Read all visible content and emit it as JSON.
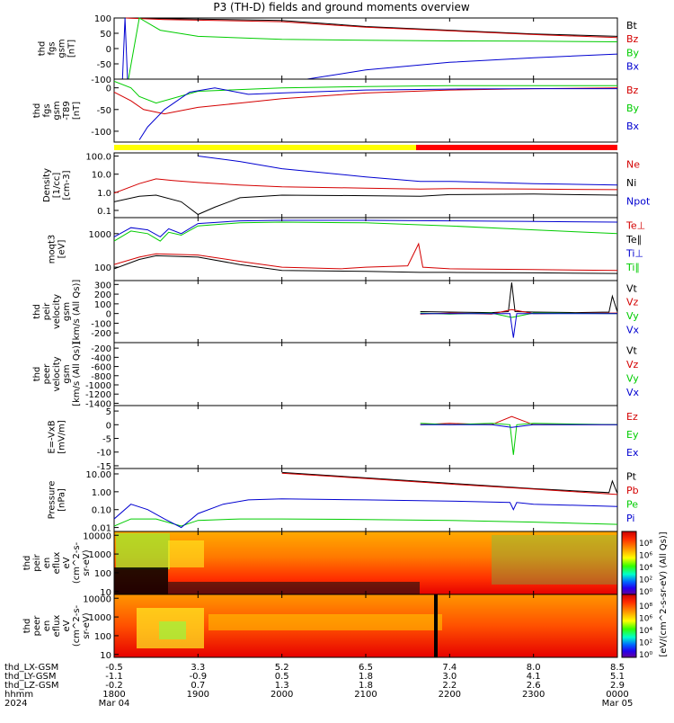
{
  "chart_data": {
    "type": "line",
    "title": "P3 (TH-D) fields and ground moments overview",
    "x_start": "1800",
    "x_end": "0000",
    "date_start": "Mar 04",
    "date_end": "Mar 05",
    "year": "2024",
    "x_ticks": [
      "1800",
      "1900",
      "2000",
      "2100",
      "2200",
      "2300",
      "0000"
    ],
    "ephem_rows": [
      {
        "label": "thd_LX-GSM",
        "values": [
          "-0.5",
          "3.3",
          "5.2",
          "6.5",
          "7.4",
          "8.0",
          "8.5"
        ]
      },
      {
        "label": "thd_LY-GSM",
        "values": [
          "-1.1",
          "-0.9",
          "0.5",
          "1.8",
          "3.0",
          "4.1",
          "5.1"
        ]
      },
      {
        "label": "thd_LZ-GSM",
        "values": [
          "-0.2",
          "0.7",
          "1.3",
          "1.8",
          "2.2",
          "2.6",
          "2.9"
        ]
      },
      {
        "label": "hhmm",
        "values": [
          "1800",
          "1900",
          "2000",
          "2100",
          "2200",
          "2300",
          "0000"
        ]
      }
    ],
    "date_row": {
      "year": "2024",
      "start": "Mar 04",
      "end": "Mar 05"
    },
    "panels": [
      {
        "ylabel": [
          "thd",
          "fgs",
          "gsm",
          "[nT]"
        ],
        "ylim": [
          -100,
          100
        ],
        "scale": "linear",
        "yticks": [
          100,
          50,
          0,
          -50,
          -100
        ],
        "ytick_labels": [
          "100",
          "50",
          "0",
          "-50",
          "-100"
        ],
        "series": [
          {
            "name": "Bt",
            "color": "#000000",
            "x": [
              0.14,
              0.6,
              2.0,
              3.0,
              4.0,
              5.0,
              6.0
            ],
            "y": [
              100,
              98,
              92,
              72,
              60,
              48,
              40
            ]
          },
          {
            "name": "Bz",
            "color": "#d40000",
            "x": [
              0.14,
              0.6,
              2.0,
              3.0,
              4.0,
              5.0,
              6.0
            ],
            "y": [
              100,
              95,
              88,
              70,
              58,
              46,
              36
            ]
          },
          {
            "name": "By",
            "color": "#00cc00",
            "x": [
              0.17,
              0.3,
              0.55,
              1.0,
              2.0,
              3.0,
              4.0,
              5.0,
              6.0
            ],
            "y": [
              -100,
              100,
              60,
              40,
              30,
              27,
              25,
              24,
              22
            ]
          },
          {
            "name": "Bx",
            "color": "#0000d0",
            "x": [
              0.1,
              0.13,
              0.16,
              2.3,
              3.0,
              4.0,
              5.0,
              6.0
            ],
            "y": [
              -100,
              100,
              -100,
              -100,
              -70,
              -45,
              -30,
              -18
            ]
          }
        ]
      },
      {
        "ylabel": [
          "thd",
          "fgs",
          "gsm",
          "-T89",
          "[nT]"
        ],
        "ylim": [
          -125,
          20
        ],
        "scale": "linear",
        "yticks": [
          0,
          -50,
          -100
        ],
        "ytick_labels": [
          "0",
          "-50",
          "-100"
        ],
        "series": [
          {
            "name": "Bz",
            "color": "#d40000",
            "x": [
              0,
              0.2,
              0.35,
              0.6,
              1.0,
              1.5,
              2.0,
              3.0,
              4.0,
              5.0,
              6.0
            ],
            "y": [
              -10,
              -30,
              -50,
              -60,
              -45,
              -35,
              -25,
              -12,
              -5,
              -2,
              0
            ]
          },
          {
            "name": "By",
            "color": "#00cc00",
            "x": [
              0,
              0.2,
              0.3,
              0.5,
              1.0,
              2.0,
              3.0,
              4.0,
              5.0,
              6.0
            ],
            "y": [
              15,
              0,
              -20,
              -35,
              -8,
              0,
              3,
              5,
              5,
              5
            ]
          },
          {
            "name": "Bx",
            "color": "#0000d0",
            "x": [
              0.3,
              0.4,
              0.6,
              0.9,
              1.2,
              1.6,
              2.0,
              3.0,
              4.0,
              5.0,
              6.0
            ],
            "y": [
              -120,
              -90,
              -50,
              -10,
              0,
              -15,
              -12,
              -5,
              -3,
              -2,
              -2
            ]
          }
        ]
      },
      {
        "ylabel": [
          "Density",
          "[1/cc]",
          "[cm-3]"
        ],
        "ylim": [
          0.04,
          150
        ],
        "scale": "log",
        "yticks": [
          100,
          10,
          1,
          0.1
        ],
        "ytick_labels": [
          "100.0",
          "10.0",
          "1.0",
          "0.1"
        ],
        "series": [
          {
            "name": "Ne",
            "color": "#d40000",
            "x": [
              0,
              0.3,
              0.5,
              0.7,
              1.0,
              1.5,
              2.0,
              3.0,
              3.65,
              4.0,
              5.0,
              6.0
            ],
            "y": [
              0.9,
              3.0,
              5.5,
              4.5,
              3.5,
              2.5,
              2.0,
              1.7,
              1.5,
              1.6,
              1.5,
              1.4
            ]
          },
          {
            "name": "Ni",
            "color": "#000000",
            "x": [
              0,
              0.3,
              0.5,
              0.8,
              1.0,
              1.2,
              1.5,
              2.0,
              3.0,
              3.65,
              4.0,
              5.0,
              6.0
            ],
            "y": [
              0.3,
              0.6,
              0.7,
              0.3,
              0.06,
              0.15,
              0.5,
              0.7,
              0.65,
              0.6,
              0.75,
              0.8,
              0.7
            ]
          },
          {
            "name": "Npot",
            "color": "#0000d0",
            "x": [
              1.0,
              1.5,
              2.0,
              2.5,
              3.0,
              3.65,
              4.0,
              5.0,
              6.0
            ],
            "y": [
              100,
              50,
              20,
              12,
              7,
              4,
              4,
              3,
              2.5
            ]
          }
        ]
      },
      {
        "ylabel": [
          "moqt3",
          "[eV]"
        ],
        "ylim": [
          40,
          3000
        ],
        "scale": "log",
        "yticks": [
          1000,
          100
        ],
        "ytick_labels": [
          "1000",
          "100"
        ],
        "series": [
          {
            "name": "Te⊥",
            "color": "#d40000",
            "x": [
              0,
              0.3,
              0.5,
              1.0,
              1.5,
              2.0,
              2.7,
              3.0,
              3.5,
              3.63,
              3.68,
              4.0,
              5.0,
              6.0
            ],
            "y": [
              120,
              200,
              250,
              230,
              150,
              100,
              90,
              100,
              110,
              500,
              100,
              90,
              85,
              80
            ]
          },
          {
            "name": "Te∥",
            "color": "#000000",
            "x": [
              0,
              0.3,
              0.5,
              1.0,
              1.5,
              2.0,
              3.0,
              3.65,
              4.0,
              5.0,
              6.0
            ],
            "y": [
              90,
              170,
              220,
              200,
              120,
              80,
              75,
              70,
              70,
              68,
              65
            ]
          },
          {
            "name": "Ti⊥",
            "color": "#0000d0",
            "x": [
              0,
              0.2,
              0.4,
              0.55,
              0.65,
              0.8,
              1.0,
              1.5,
              2.0,
              3.0,
              4.0,
              5.0,
              6.0
            ],
            "y": [
              800,
              1500,
              1300,
              800,
              1400,
              1000,
              2000,
              2400,
              2500,
              2500,
              2400,
              2300,
              2200
            ]
          },
          {
            "name": "Ti∥",
            "color": "#00cc00",
            "x": [
              0,
              0.2,
              0.4,
              0.55,
              0.65,
              0.8,
              1.0,
              1.5,
              2.0,
              3.0,
              4.0,
              5.0,
              6.0
            ],
            "y": [
              600,
              1200,
              1000,
              600,
              1100,
              900,
              1700,
              2100,
              2200,
              2100,
              1700,
              1300,
              1000
            ]
          }
        ]
      },
      {
        "ylabel": [
          "thd",
          "peir",
          "velocity",
          "gsm",
          "[km/s (All Qs)]"
        ],
        "ylim": [
          -300,
          340
        ],
        "scale": "linear",
        "yticks": [
          300,
          200,
          100,
          0,
          -100,
          -200
        ],
        "ytick_labels": [
          "300",
          "200",
          "100",
          "0",
          "-100",
          "-200"
        ],
        "series": [
          {
            "name": "Vt",
            "color": "#000000",
            "x": [
              3.65,
              4.0,
              4.5,
              4.7,
              4.74,
              4.78,
              5.0,
              5.5,
              5.9,
              5.94,
              6.0
            ],
            "y": [
              20,
              15,
              10,
              20,
              320,
              20,
              15,
              10,
              15,
              180,
              15
            ]
          },
          {
            "name": "Vz",
            "color": "#d40000",
            "x": [
              3.65,
              4.0,
              4.5,
              4.74,
              5.0,
              6.0
            ],
            "y": [
              -5,
              5,
              -5,
              40,
              0,
              5
            ]
          },
          {
            "name": "Vy",
            "color": "#00cc00",
            "x": [
              3.65,
              4.0,
              4.5,
              4.74,
              5.0,
              6.0
            ],
            "y": [
              5,
              -5,
              5,
              -40,
              5,
              0
            ]
          },
          {
            "name": "Vx",
            "color": "#0000d0",
            "x": [
              3.65,
              4.0,
              4.5,
              4.72,
              4.76,
              4.8,
              5.0,
              6.0
            ],
            "y": [
              0,
              0,
              0,
              0,
              -250,
              0,
              0,
              0
            ]
          }
        ]
      },
      {
        "ylabel": [
          "thd",
          "peer",
          "velocity",
          "gsm",
          "[km/s (All Qs)]"
        ],
        "ylim": [
          -1450,
          -80
        ],
        "scale": "linear",
        "yticks": [
          -200,
          -400,
          -600,
          -800,
          -1000,
          -1200,
          -1400
        ],
        "ytick_labels": [
          "-200",
          "-400",
          "-600",
          "-800",
          "-1000",
          "-1200",
          "-1400"
        ],
        "series": [
          {
            "name": "Vt",
            "color": "#000000",
            "x": [],
            "y": []
          },
          {
            "name": "Vz",
            "color": "#d40000",
            "x": [],
            "y": []
          },
          {
            "name": "Vy",
            "color": "#00cc00",
            "x": [],
            "y": []
          },
          {
            "name": "Vx",
            "color": "#0000d0",
            "x": [],
            "y": []
          }
        ]
      },
      {
        "ylabel": [
          "E=-VxB",
          "[mV/m]"
        ],
        "ylim": [
          -16,
          7
        ],
        "scale": "linear",
        "yticks": [
          5,
          0,
          -5,
          -10,
          -15
        ],
        "ytick_labels": [
          "5",
          "0",
          "-5",
          "-10",
          "-15"
        ],
        "series": [
          {
            "name": "Ez",
            "color": "#d40000",
            "x": [
              3.65,
              4.0,
              4.5,
              4.74,
              5.0,
              6.0
            ],
            "y": [
              0,
              0.5,
              0,
              3,
              0,
              0
            ]
          },
          {
            "name": "Ey",
            "color": "#00cc00",
            "x": [
              3.65,
              4.0,
              4.5,
              4.72,
              4.76,
              4.8,
              5.0,
              6.0
            ],
            "y": [
              0.5,
              0,
              0.5,
              0,
              -11,
              0,
              0.5,
              0
            ]
          },
          {
            "name": "Ex",
            "color": "#0000d0",
            "x": [
              3.65,
              4.0,
              4.5,
              4.74,
              5.0,
              6.0
            ],
            "y": [
              0,
              0,
              0,
              -1,
              0,
              0
            ]
          }
        ]
      },
      {
        "ylabel": [
          "Pressure",
          "[nPa]"
        ],
        "ylim": [
          0.006,
          20
        ],
        "scale": "log",
        "yticks": [
          10,
          1,
          0.1,
          0.01
        ],
        "ytick_labels": [
          "10.00",
          "1.00",
          "0.10",
          "0.01"
        ],
        "series": [
          {
            "name": "Pt",
            "color": "#000000",
            "x": [
              2.0,
              3.0,
              4.0,
              5.0,
              5.9,
              5.94,
              6.0
            ],
            "y": [
              12,
              6,
              3,
              1.5,
              0.9,
              4,
              0.8
            ]
          },
          {
            "name": "Pb",
            "color": "#d40000",
            "x": [
              2.0,
              3.0,
              4.0,
              5.0,
              6.0
            ],
            "y": [
              11,
              5.5,
              2.7,
              1.4,
              0.7
            ]
          },
          {
            "name": "Pe",
            "color": "#00cc00",
            "x": [
              0,
              0.2,
              0.5,
              0.8,
              1.0,
              1.5,
              2.0,
              3.0,
              4.0,
              5.0,
              6.0
            ],
            "y": [
              0.012,
              0.03,
              0.03,
              0.012,
              0.025,
              0.03,
              0.03,
              0.028,
              0.025,
              0.02,
              0.015
            ]
          },
          {
            "name": "Pi",
            "color": "#0000d0",
            "x": [
              0,
              0.2,
              0.4,
              0.6,
              0.8,
              1.0,
              1.3,
              1.6,
              2.0,
              3.0,
              4.0,
              4.72,
              4.76,
              4.8,
              5.0,
              6.0
            ],
            "y": [
              0.03,
              0.2,
              0.1,
              0.03,
              0.01,
              0.06,
              0.2,
              0.35,
              0.4,
              0.35,
              0.3,
              0.25,
              0.1,
              0.25,
              0.2,
              0.15
            ]
          }
        ]
      },
      {
        "ylabel": [
          "thd",
          "peir",
          "en",
          "eflux",
          "eV",
          "(cm^2-s-",
          "sr-eV)"
        ],
        "ylim": [
          7,
          16000
        ],
        "scale": "log",
        "yticks": [
          10000,
          1000,
          100,
          10
        ],
        "ytick_labels": [
          "10000",
          "1000",
          "100",
          "10"
        ],
        "spectrogram": true
      },
      {
        "ylabel": [
          "thd",
          "peer",
          "en",
          "eflux",
          "eV",
          "(cm^2-s-",
          "sr-eV)"
        ],
        "ylim": [
          7,
          16000
        ],
        "scale": "log",
        "yticks": [
          10000,
          1000,
          100,
          10
        ],
        "ytick_labels": [
          "10000",
          "1000",
          "100",
          "10"
        ],
        "spectrogram": true
      }
    ],
    "colorbar": {
      "label": "[eV/(cm^2-s-sr-eV) (All Qs)]",
      "ticks": [
        "10⁸",
        "10⁶",
        "10⁴",
        "10²",
        "10⁰"
      ]
    },
    "mode_bar": {
      "segments": [
        {
          "start": 0,
          "end": 3.6,
          "color": "#ffff00"
        },
        {
          "start": 3.6,
          "end": 6,
          "color": "#ff0000"
        }
      ]
    }
  }
}
